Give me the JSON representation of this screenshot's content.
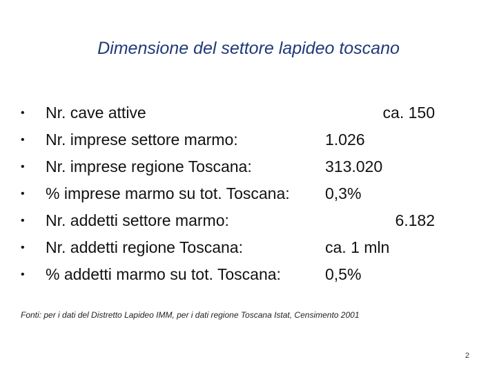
{
  "slide": {
    "title": "Dimensione del settore lapideo toscano",
    "bullet_symbol": "•",
    "items": [
      {
        "label": "Nr. cave attive",
        "value": "ca. 150"
      },
      {
        "label": "Nr. imprese settore marmo:",
        "value": "1.026"
      },
      {
        "label": "Nr. imprese regione Toscana:",
        "value": "313.020"
      },
      {
        "label": "% imprese marmo su tot. Toscana:",
        "value": "0,3%"
      },
      {
        "label": "Nr. addetti settore marmo:",
        "value": "6.182"
      },
      {
        "label": "Nr. addetti regione Toscana:",
        "value": "ca. 1 mln"
      },
      {
        "label": "% addetti marmo su tot. Toscana:",
        "value": "0,5%"
      }
    ],
    "source": "Fonti: per i dati del Distretto Lapideo IMM, per i dati regione Toscana Istat, Censimento 2001",
    "page_number": "2",
    "colors": {
      "title": "#1f3a78",
      "text": "#111111",
      "background": "#ffffff"
    }
  }
}
